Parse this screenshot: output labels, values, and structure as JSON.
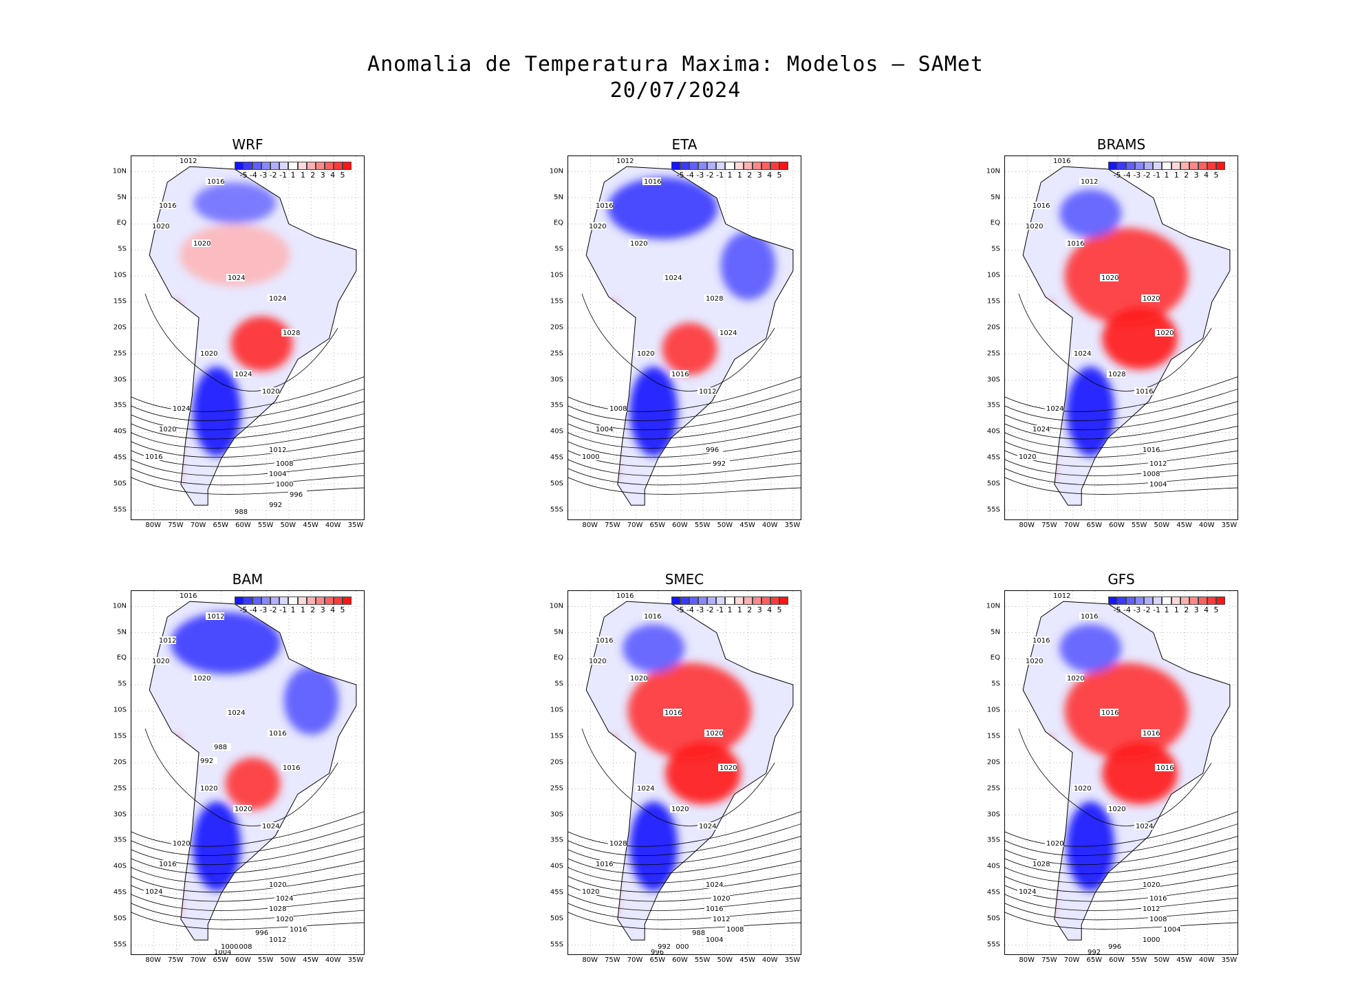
{
  "title": {
    "line1": "Anomalia de Temperatura Maxima: Modelos – SAMet",
    "line2": "20/07/2024"
  },
  "colorbar": {
    "colors": [
      "#1515ff",
      "#3a3aff",
      "#6060ff",
      "#8888ff",
      "#b0b0ff",
      "#d8d8ff",
      "#ffffff",
      "#ffd8d8",
      "#ffb0b0",
      "#ff8888",
      "#ff6060",
      "#ff3a3a",
      "#ff1515"
    ],
    "labels": [
      "-5",
      "-4",
      "-3",
      "-2",
      "-1",
      "1",
      "1",
      "2",
      "3",
      "4",
      "5"
    ]
  },
  "lat_labels": [
    "10N",
    "5N",
    "EQ",
    "5S",
    "10S",
    "15S",
    "20S",
    "25S",
    "30S",
    "35S",
    "40S",
    "45S",
    "50S",
    "55S"
  ],
  "lon_labels": [
    "80W",
    "75W",
    "70W",
    "65W",
    "60W",
    "55W",
    "50W",
    "45W",
    "40W",
    "35W"
  ],
  "panels": [
    {
      "name": "WRF",
      "pattern": "mixed",
      "isobars": [
        "1012",
        "1016",
        "1016",
        "1020",
        "1020",
        "1024",
        "1024",
        "1028",
        "1020",
        "1024",
        "1020",
        "1024",
        "1020",
        "1016",
        "1012",
        "1008",
        "1004",
        "1000",
        "996",
        "992",
        "988"
      ]
    },
    {
      "name": "ETA",
      "pattern": "cold",
      "isobars": [
        "1012",
        "1016",
        "1016",
        "1020",
        "1020",
        "1024",
        "1028",
        "1024",
        "1020",
        "1016",
        "1012",
        "1008",
        "1004",
        "1000",
        "996",
        "992"
      ]
    },
    {
      "name": "BRAMS",
      "pattern": "warm",
      "isobars": [
        "1016",
        "1012",
        "1016",
        "1020",
        "1016",
        "1020",
        "1020",
        "1020",
        "1024",
        "1028",
        "1016",
        "1024",
        "1024",
        "1020",
        "1016",
        "1012",
        "1008",
        "1004"
      ]
    },
    {
      "name": "BAM",
      "pattern": "cold",
      "isobars": [
        "1016",
        "1012",
        "1012",
        "1020",
        "1020",
        "1024",
        "1016",
        "1016",
        "1020",
        "1020",
        "1024",
        "1020",
        "1016",
        "1024",
        "1020",
        "1024",
        "1028",
        "1020",
        "1016",
        "1012",
        "1008",
        "1004",
        "1000",
        "996",
        "992",
        "988"
      ]
    },
    {
      "name": "SMEC",
      "pattern": "warm",
      "isobars": [
        "1016",
        "1016",
        "1016",
        "1020",
        "1020",
        "1016",
        "1020",
        "1020",
        "1024",
        "1020",
        "1024",
        "1028",
        "1016",
        "1020",
        "1024",
        "1020",
        "1016",
        "1012",
        "1008",
        "1004",
        "1000",
        "996",
        "992",
        "988"
      ]
    },
    {
      "name": "GFS",
      "pattern": "warm",
      "isobars": [
        "1012",
        "1016",
        "1016",
        "1020",
        "1020",
        "1016",
        "1016",
        "1016",
        "1020",
        "1020",
        "1024",
        "1020",
        "1028",
        "1024",
        "1020",
        "1016",
        "1012",
        "1008",
        "1004",
        "1000",
        "996",
        "992"
      ]
    }
  ]
}
